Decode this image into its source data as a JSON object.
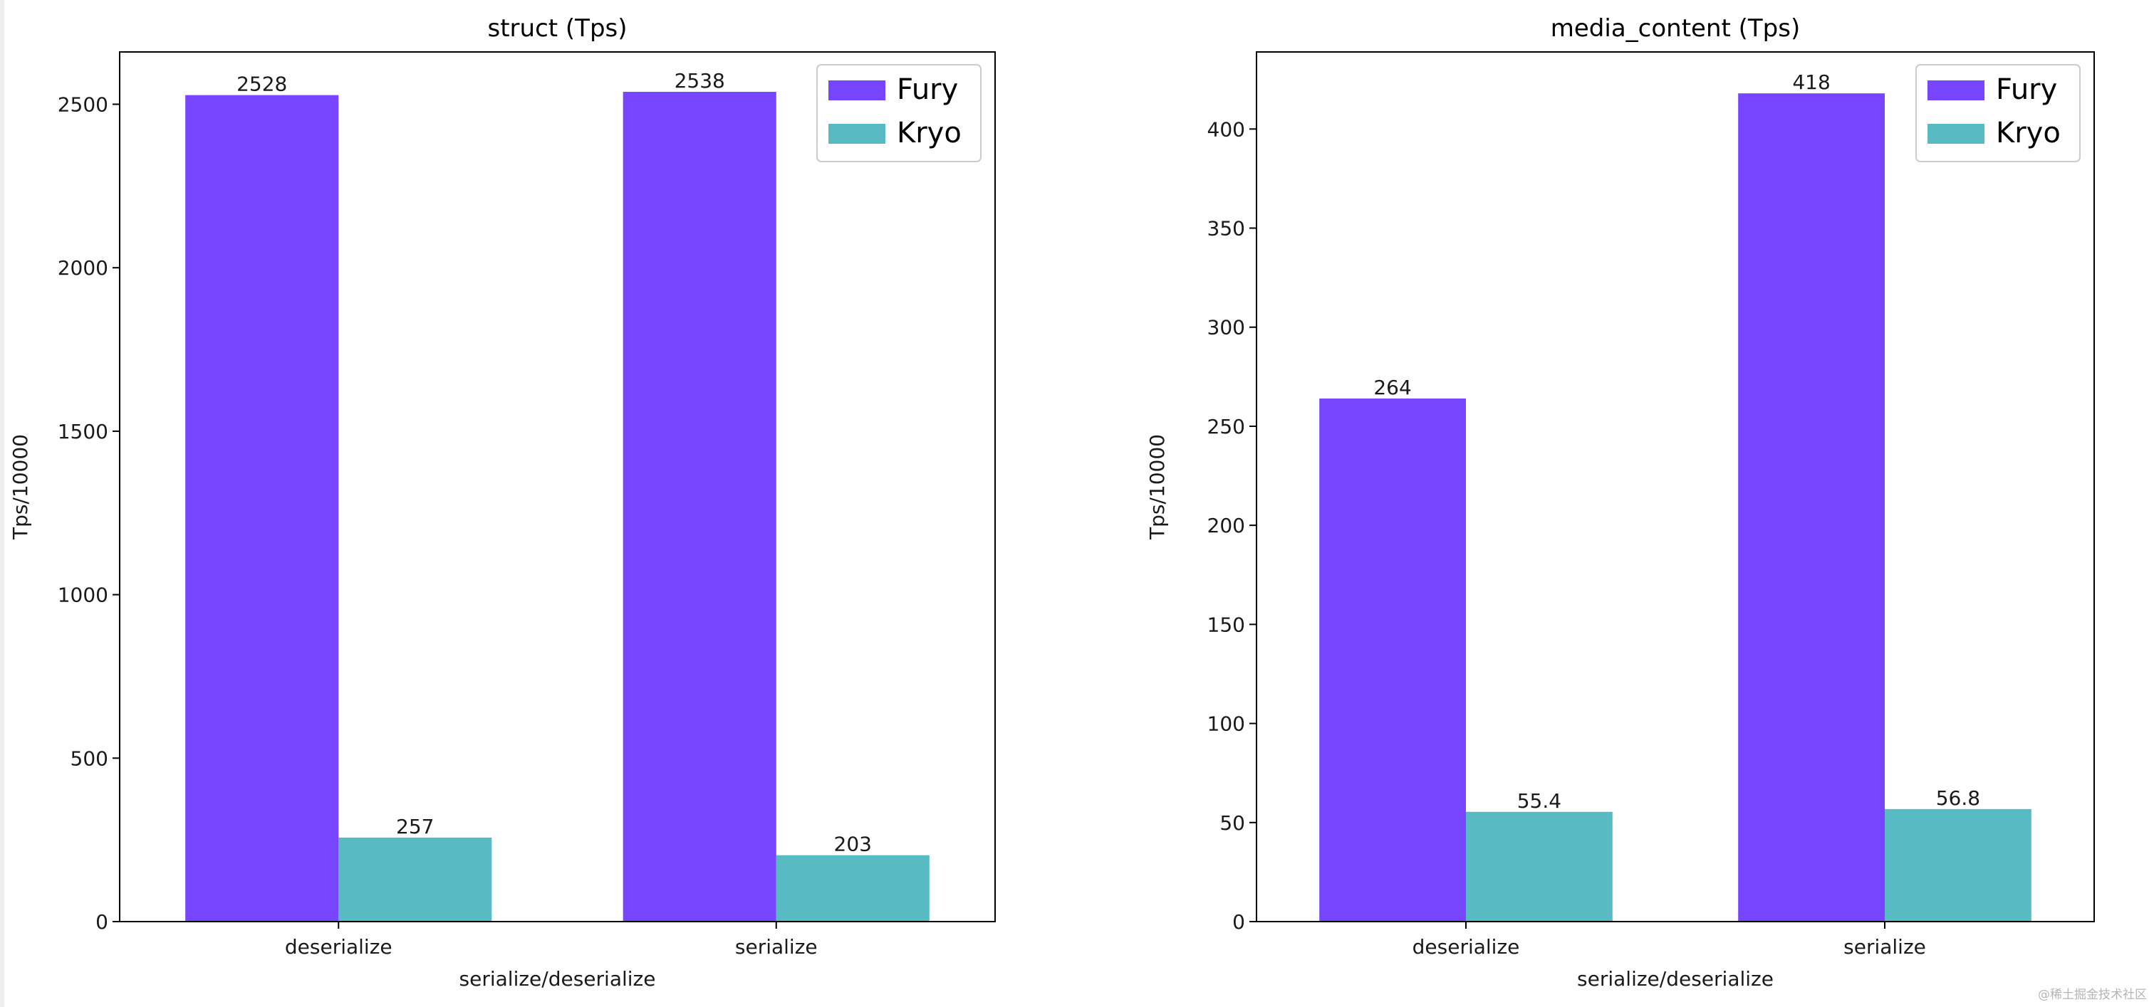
{
  "chart_data": [
    {
      "type": "bar",
      "title": "struct (Tps)",
      "xlabel": "serialize/deserialize",
      "ylabel": "Tps/10000",
      "categories": [
        "deserialize",
        "serialize"
      ],
      "series": [
        {
          "name": "Fury",
          "values": [
            2528,
            2538
          ],
          "labels": [
            "2528",
            "2538"
          ],
          "color": "#7744ff"
        },
        {
          "name": "Kryo",
          "values": [
            257,
            203
          ],
          "labels": [
            "257",
            "203"
          ],
          "color": "#58bbc4"
        }
      ],
      "ylim": [
        0,
        2660
      ],
      "yticks": [
        0,
        500,
        1000,
        1500,
        2000,
        2500
      ],
      "grid": false,
      "legend": "top-right"
    },
    {
      "type": "bar",
      "title": "media_content (Tps)",
      "xlabel": "serialize/deserialize",
      "ylabel": "Tps/10000",
      "categories": [
        "deserialize",
        "serialize"
      ],
      "series": [
        {
          "name": "Fury",
          "values": [
            264,
            418
          ],
          "labels": [
            "264",
            "418"
          ],
          "color": "#7744ff"
        },
        {
          "name": "Kryo",
          "values": [
            55.4,
            56.8
          ],
          "labels": [
            "55.4",
            "56.8"
          ],
          "color": "#58bbc4"
        }
      ],
      "ylim": [
        0,
        438.9
      ],
      "yticks": [
        0,
        50,
        100,
        150,
        200,
        250,
        300,
        350,
        400
      ],
      "grid": false,
      "legend": "top-right"
    }
  ],
  "watermark": "@稀土掘金技术社区"
}
